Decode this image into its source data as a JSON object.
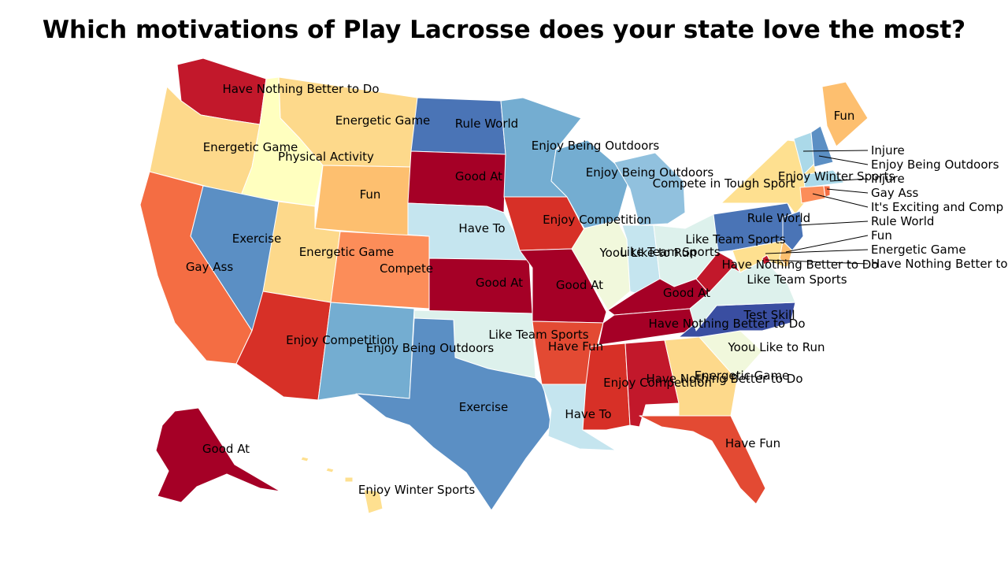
{
  "title": "Which motivations of Play Lacrosse does your state love the most?",
  "palette": {
    "deep_red": "#a50026",
    "red": "#c2182b",
    "red_orange": "#d73027",
    "orange_red": "#e34a33",
    "coral": "#f46d43",
    "orange": "#fc8d59",
    "light_orange": "#fdbf6f",
    "tan": "#fdd98b",
    "pale_yellow": "#fee090",
    "cream": "#ffffbf",
    "pale_green": "#f1f8dc",
    "mint": "#ddf1ec",
    "pale_blue": "#c5e5ef",
    "light_blue": "#abd9e9",
    "sky_blue": "#91c1de",
    "mid_blue": "#74add1",
    "steel_blue": "#5b8fc4",
    "blue": "#4a74b6",
    "navy": "#3a4ea1"
  },
  "states": {
    "WA": "Have Nothing Better to Do",
    "OR": "Energetic Game",
    "CA": "Gay Ass",
    "ID": "Physical Activity",
    "NV": "Exercise",
    "MT": "Energetic Game",
    "WY": "Fun",
    "UT": "Energetic Game",
    "AZ": "Enjoy Competition",
    "CO": "Compete",
    "NM": "Enjoy Being Outdoors",
    "ND": "Rule World",
    "SD": "Good At",
    "NE": "Have To",
    "KS": "Good At",
    "OK": "Like Team Sports",
    "TX": "Exercise",
    "MN": "Enjoy Being Outdoors",
    "IA": "Enjoy Competition",
    "MO": "Good At",
    "AR": "Have Fun",
    "LA": "Have To",
    "WI": "Enjoy Being Outdoors",
    "MI": "Compete in Tough Sport",
    "IL": "Yoou Like to Run",
    "IN": "Like Team Sports",
    "OH": "Like Team Sports",
    "KY": "Good At",
    "TN": "Have Nothing Better to Do",
    "MS": "Enjoy Competition",
    "AL": "Have Nothing Better to Do",
    "GA": "Energetic Game",
    "FL": "Have Fun",
    "SC": "Yoou Like to Run",
    "NC": "Test Skill",
    "VA": "Like Team Sports",
    "WV": "Have Nothing Better to Do",
    "PA": "Rule World",
    "NY": "Enjoy Winter Sports",
    "ME": "Fun",
    "AK": "Good At",
    "HI": "Enjoy Winter Sports",
    "VT": "Injure",
    "NH": "Enjoy Being Outdoors",
    "MA": "Injure",
    "RI": "Gay Ass",
    "CT": "It's Exciting and Comp",
    "NJ": "Rule World",
    "DE": "Fun",
    "MD": "Energetic Game",
    "DC": "Have Nothing Better to Do"
  }
}
